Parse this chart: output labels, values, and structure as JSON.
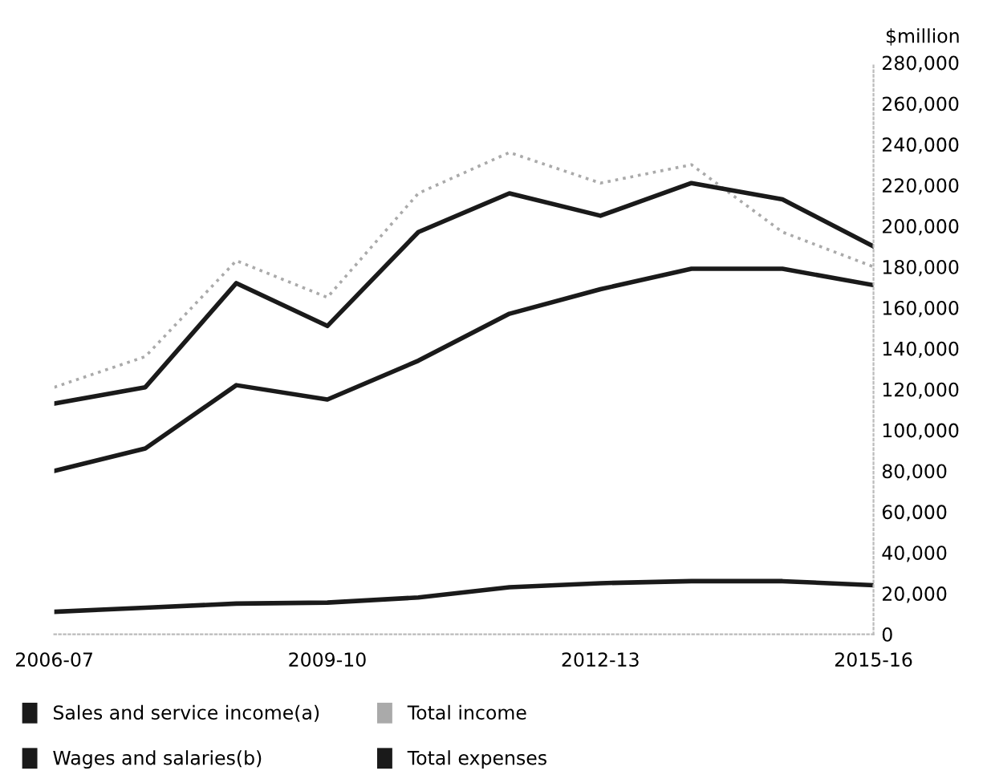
{
  "chart_data": {
    "type": "line",
    "ylabel": "$million",
    "categories": [
      "2006-07",
      null,
      null,
      "2009-10",
      null,
      null,
      "2012-13",
      null,
      null,
      "2015-16"
    ],
    "series": [
      {
        "name": "Sales and service income(a)",
        "color": "#1a1a1a",
        "line_style": "solid",
        "values": [
          80000,
          91000,
          122000,
          115000,
          134000,
          157000,
          169000,
          179000,
          179000,
          171000
        ]
      },
      {
        "name": "Total income",
        "color": "#aaaaaa",
        "line_style": "dotted",
        "values": [
          121000,
          136000,
          183000,
          165000,
          216000,
          236000,
          221000,
          230000,
          197000,
          180000
        ]
      },
      {
        "name": "Wages and salaries(b)",
        "color": "#1a1a1a",
        "line_style": "solid",
        "values": [
          11000,
          13000,
          15000,
          15500,
          18000,
          23000,
          25000,
          26000,
          26000,
          24000
        ]
      },
      {
        "name": "Total expenses",
        "color": "#1a1a1a",
        "line_style": "solid",
        "values": [
          113000,
          121000,
          172000,
          151000,
          197000,
          216000,
          205000,
          221000,
          213000,
          190000
        ]
      }
    ],
    "ylim": [
      0,
      280000
    ],
    "yticks": [
      0,
      {
        "value": 20000,
        "label": "20,000"
      },
      {
        "value": 40000,
        "label": "40,000"
      },
      {
        "value": 60000,
        "label": "60,000"
      },
      {
        "value": 80000,
        "label": "80,000"
      },
      {
        "value": 100000,
        "label": "100,000"
      },
      {
        "value": 120000,
        "label": "120,000"
      },
      {
        "value": 140000,
        "label": "140,000"
      },
      {
        "value": 160000,
        "label": "160,000"
      },
      {
        "value": 180000,
        "label": "180,000"
      },
      {
        "value": 200000,
        "label": "200,000"
      },
      {
        "value": 220000,
        "label": "220,000"
      },
      {
        "value": 240000,
        "label": "240,000"
      },
      {
        "value": 260000,
        "label": "260,000"
      },
      {
        "value": 280000,
        "label": "280,000"
      }
    ],
    "grid": false,
    "legend": "bottom",
    "marker": "none"
  }
}
